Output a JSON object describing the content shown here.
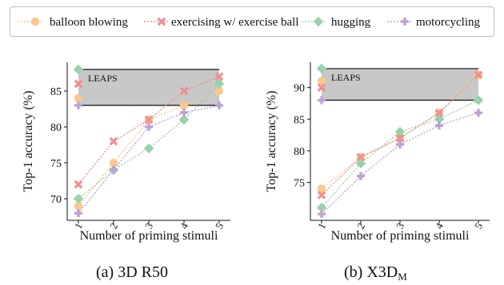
{
  "legend": [
    {
      "name": "balloon blowing",
      "color": "#f9c98c",
      "marker": "circle"
    },
    {
      "name": "exercising w/ exercise ball",
      "color": "#f08f8f",
      "marker": "cross"
    },
    {
      "name": "hugging",
      "color": "#97d2a9",
      "marker": "diamond"
    },
    {
      "name": "motorcycling",
      "color": "#bfa2d4",
      "marker": "plus"
    }
  ],
  "chart_data": [
    {
      "type": "line",
      "caption": "(a) 3D R50",
      "xlabel": "Number of priming stimuli",
      "ylabel": "Top-1 accuracy (%)",
      "x": [
        1,
        2,
        3,
        4,
        5
      ],
      "xticks": [
        "1",
        "2",
        "3",
        "4",
        "5"
      ],
      "yticks": [
        70,
        75,
        80,
        85
      ],
      "ylim": [
        67,
        89
      ],
      "band": {
        "label": "LEAPS",
        "from": 83,
        "to": 88
      },
      "series": [
        {
          "name": "balloon blowing",
          "values": [
            69,
            75,
            81,
            83,
            85
          ]
        },
        {
          "name": "exercising w/ exercise ball",
          "values": [
            72,
            78,
            81,
            85,
            87
          ]
        },
        {
          "name": "hugging",
          "values": [
            70,
            74,
            77,
            81,
            86
          ]
        },
        {
          "name": "motorcycling",
          "values": [
            68,
            74,
            80,
            82,
            83
          ]
        }
      ],
      "leaps_values": {
        "balloon blowing": 84,
        "exercising w/ exercise ball": 86,
        "hugging": 88,
        "motorcycling": 83
      }
    },
    {
      "type": "line",
      "caption": "(b) X3D",
      "caption_sub": "M",
      "xlabel": "Number of priming stimuli",
      "ylabel": "Top-1 accuracy (%)",
      "x": [
        1,
        2,
        3,
        4,
        5
      ],
      "xticks": [
        "1",
        "2",
        "3",
        "4",
        "5"
      ],
      "yticks": [
        75,
        80,
        85,
        90
      ],
      "ylim": [
        69,
        94
      ],
      "band": {
        "label": "LEAPS",
        "from": 88,
        "to": 93
      },
      "series": [
        {
          "name": "balloon blowing",
          "values": [
            74,
            79,
            82,
            86,
            92
          ]
        },
        {
          "name": "exercising w/ exercise ball",
          "values": [
            73,
            79,
            82,
            86,
            92
          ]
        },
        {
          "name": "hugging",
          "values": [
            71,
            78,
            83,
            85,
            88
          ]
        },
        {
          "name": "motorcycling",
          "values": [
            70,
            76,
            81,
            84,
            86
          ]
        }
      ],
      "leaps_values": {
        "balloon blowing": 91,
        "exercising w/ exercise ball": 90,
        "hugging": 93,
        "motorcycling": 88
      }
    }
  ]
}
